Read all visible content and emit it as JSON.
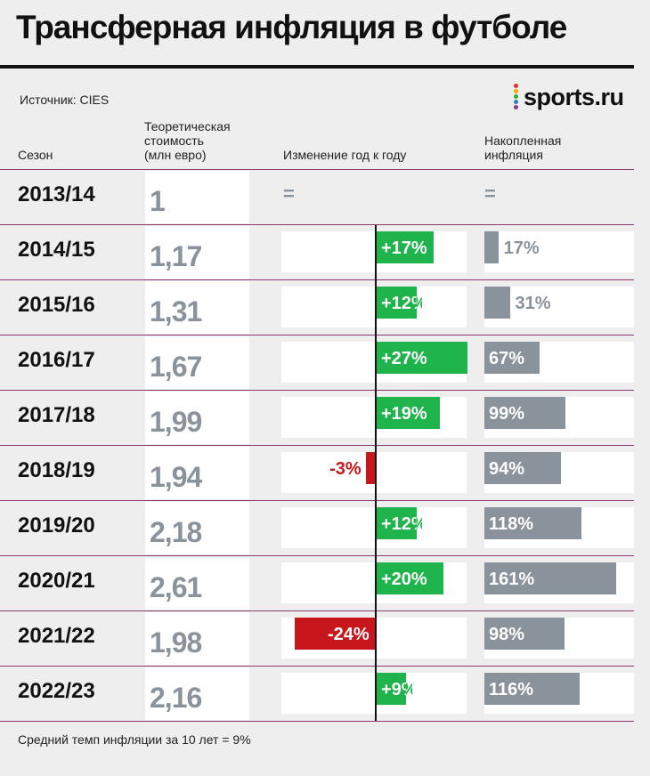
{
  "title": "Трансферная инфляция в футболе",
  "source": "Источник: CIES",
  "logo_text": "sports.ru",
  "headers": {
    "season": "Сезон",
    "value": "Теоретическая\nстоимость\n(млн евро)",
    "yoy": "Изменение год к году",
    "accum": "Накопленная\nинфляция"
  },
  "no_change_symbol": "=",
  "footer": "Средний темп инфляции за 10 лет = 9%",
  "colors": {
    "positive": "#1eb34b",
    "negative": "#c8161d",
    "accum": "#8a939b",
    "value_text": "#8a939b"
  },
  "chart_data": {
    "type": "table",
    "columns": [
      "Сезон",
      "Теоретическая стоимость (млн евро)",
      "Изменение год к году",
      "Накопленная инфляция"
    ],
    "rows": [
      {
        "season": "2013/14",
        "value": "1",
        "yoy": null,
        "yoy_label": "",
        "accum": null,
        "accum_label": ""
      },
      {
        "season": "2014/15",
        "value": "1,17",
        "yoy": 17,
        "yoy_label": "+17%",
        "accum": 17,
        "accum_label": "17%"
      },
      {
        "season": "2015/16",
        "value": "1,31",
        "yoy": 12,
        "yoy_label": "+12%",
        "accum": 31,
        "accum_label": "31%"
      },
      {
        "season": "2016/17",
        "value": "1,67",
        "yoy": 27,
        "yoy_label": "+27%",
        "accum": 67,
        "accum_label": "67%"
      },
      {
        "season": "2017/18",
        "value": "1,99",
        "yoy": 19,
        "yoy_label": "+19%",
        "accum": 99,
        "accum_label": "99%"
      },
      {
        "season": "2018/19",
        "value": "1,94",
        "yoy": -3,
        "yoy_label": "-3%",
        "accum": 94,
        "accum_label": "94%"
      },
      {
        "season": "2019/20",
        "value": "2,18",
        "yoy": 12,
        "yoy_label": "+12%",
        "accum": 118,
        "accum_label": "118%"
      },
      {
        "season": "2020/21",
        "value": "2,61",
        "yoy": 20,
        "yoy_label": "+20%",
        "accum": 161,
        "accum_label": "161%"
      },
      {
        "season": "2021/22",
        "value": "1,98",
        "yoy": -24,
        "yoy_label": "-24%",
        "accum": 98,
        "accum_label": "98%"
      },
      {
        "season": "2022/23",
        "value": "2,16",
        "yoy": 9,
        "yoy_label": "+9%",
        "accum": 116,
        "accum_label": "116%"
      }
    ]
  }
}
